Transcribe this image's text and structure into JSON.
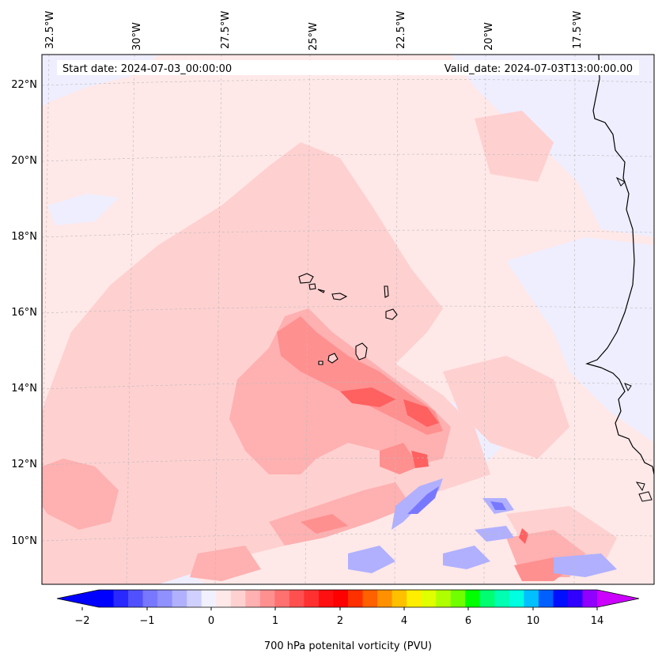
{
  "header": {
    "start_date": "Start date: 2024-07-03_00:00:00",
    "valid_date": "Valid_date: 2024-07-03T13:00:00.00"
  },
  "longitude_labels": [
    "32.5°W",
    "30°W",
    "27.5°W",
    "25°W",
    "22.5°W",
    "20°W",
    "17.5°W"
  ],
  "latitude_labels": [
    "22°N",
    "20°N",
    "18°N",
    "16°N",
    "14°N",
    "12°N",
    "10°N"
  ],
  "colorbar": {
    "label": "700 hPa potenital vorticity (PVU)",
    "tick_labels": [
      "−2",
      "−1",
      "0",
      "1",
      "2",
      "4",
      "6",
      "10",
      "14"
    ],
    "colors": [
      "#0000ff",
      "#2828ff",
      "#5050ff",
      "#7878ff",
      "#9090ff",
      "#b0b0ff",
      "#d0d0ff",
      "#f0f0ff",
      "#ffe8e8",
      "#ffd0d0",
      "#ffb0b0",
      "#ff9090",
      "#ff7070",
      "#ff5050",
      "#ff3030",
      "#ff1010",
      "#ff0000",
      "#ff3000",
      "#ff6000",
      "#ff9000",
      "#ffc000",
      "#ffee00",
      "#e0ff00",
      "#b0ff00",
      "#70ff00",
      "#00ff00",
      "#00ff70",
      "#00ffb0",
      "#00ffe0",
      "#00c0ff",
      "#0060ff",
      "#0010ff",
      "#3000ff",
      "#9000ff"
    ],
    "extend_low_color": "#0000ff",
    "extend_high_color": "#cc00ff"
  },
  "colors": {
    "background_field": "#ffe8e8",
    "coastline": "#000000"
  }
}
